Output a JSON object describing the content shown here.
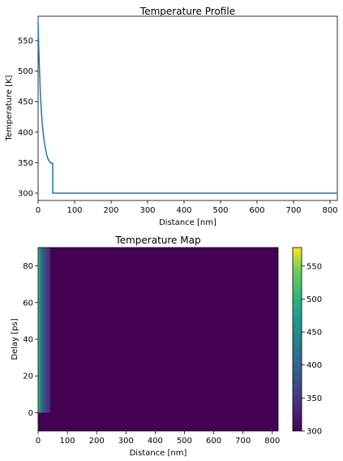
{
  "chart_data": [
    {
      "type": "line",
      "title": "Temperature Profile",
      "xlabel": "Distance [nm]",
      "ylabel": "Temperature [K]",
      "xlim": [
        0,
        820
      ],
      "ylim": [
        288,
        590
      ],
      "xticks": [
        0,
        100,
        200,
        300,
        400,
        500,
        600,
        700,
        800
      ],
      "yticks": [
        300,
        350,
        400,
        450,
        500,
        550
      ],
      "grid": false,
      "series": [
        {
          "color": "#1f77b4",
          "x": [
            0,
            2,
            4,
            6,
            8,
            10,
            12,
            14,
            16,
            18,
            20,
            22,
            24,
            26,
            28,
            30,
            32,
            33,
            34,
            36,
            38,
            40,
            40,
            60,
            100,
            200,
            400,
            600,
            800,
            820
          ],
          "y": [
            580,
            533,
            499,
            466,
            443,
            425,
            410,
            398,
            388,
            380,
            373,
            367,
            362,
            358,
            355,
            353,
            352,
            351,
            350,
            349,
            349,
            349,
            300,
            300,
            300,
            300,
            300,
            300,
            300,
            300
          ]
        }
      ]
    },
    {
      "type": "heatmap",
      "title": "Temperature Map",
      "xlabel": "Distance [nm]",
      "ylabel": "Delay [ps]",
      "xlim": [
        0,
        820
      ],
      "ylim": [
        -10,
        90
      ],
      "xticks": [
        0,
        100,
        200,
        300,
        400,
        500,
        600,
        700,
        800
      ],
      "yticks": [
        0,
        20,
        40,
        60,
        80
      ],
      "colormap": "viridis",
      "clim": [
        300,
        578
      ],
      "colorbar_ticks": [
        300,
        350,
        400,
        450,
        500,
        550
      ],
      "background_value": 300,
      "delay_range_heated": [
        0,
        90
      ],
      "columns": [
        {
          "x0": 0,
          "x1": 2,
          "value": 540
        },
        {
          "x0": 2,
          "x1": 4,
          "value": 500
        },
        {
          "x0": 4,
          "x1": 6,
          "value": 470
        },
        {
          "x0": 6,
          "x1": 8,
          "value": 448
        },
        {
          "x0": 8,
          "x1": 10,
          "value": 432
        },
        {
          "x0": 10,
          "x1": 14,
          "value": 415
        },
        {
          "x0": 14,
          "x1": 18,
          "value": 396
        },
        {
          "x0": 18,
          "x1": 22,
          "value": 380
        },
        {
          "x0": 22,
          "x1": 28,
          "value": 366
        },
        {
          "x0": 28,
          "x1": 34,
          "value": 356
        },
        {
          "x0": 34,
          "x1": 40,
          "value": 350
        }
      ]
    }
  ]
}
